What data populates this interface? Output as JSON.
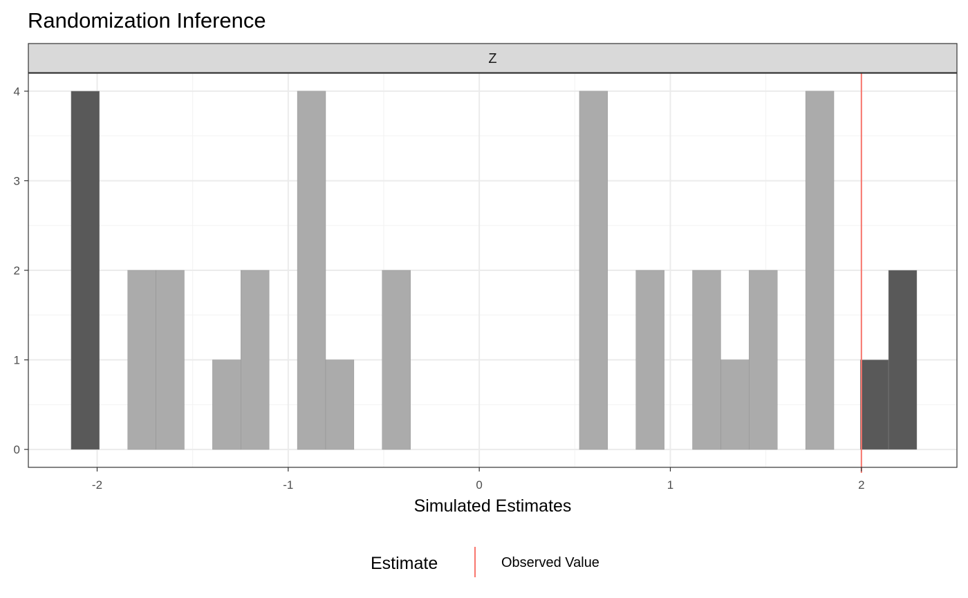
{
  "chart_data": {
    "type": "bar",
    "title": "Randomization Inference",
    "facet_label": "Z",
    "xlabel": "Simulated Estimates",
    "ylabel": "",
    "xlim": [
      -2.36,
      2.5
    ],
    "ylim": [
      -0.2,
      4.2
    ],
    "x_ticks": [
      -2,
      -1,
      0,
      1,
      2
    ],
    "x_tick_labels": [
      "-2",
      "-1",
      "0",
      "1",
      "2"
    ],
    "y_ticks": [
      0,
      1,
      2,
      3,
      4
    ],
    "y_tick_labels": [
      "0",
      "1",
      "2",
      "3",
      "4"
    ],
    "grid": true,
    "bin_width": 0.148,
    "observed_value": 2.0,
    "bins": [
      {
        "x_start": -2.136,
        "x_end": -1.988,
        "count": 4,
        "extreme": true
      },
      {
        "x_start": -1.84,
        "x_end": -1.692,
        "count": 2,
        "extreme": false
      },
      {
        "x_start": -1.692,
        "x_end": -1.544,
        "count": 2,
        "extreme": false
      },
      {
        "x_start": -1.396,
        "x_end": -1.248,
        "count": 1,
        "extreme": false
      },
      {
        "x_start": -1.248,
        "x_end": -1.1,
        "count": 2,
        "extreme": false
      },
      {
        "x_start": -0.952,
        "x_end": -0.804,
        "count": 4,
        "extreme": false
      },
      {
        "x_start": -0.804,
        "x_end": -0.656,
        "count": 1,
        "extreme": false
      },
      {
        "x_start": -0.508,
        "x_end": -0.36,
        "count": 2,
        "extreme": false
      },
      {
        "x_start": 0.524,
        "x_end": 0.672,
        "count": 4,
        "extreme": false
      },
      {
        "x_start": 0.82,
        "x_end": 0.968,
        "count": 2,
        "extreme": false
      },
      {
        "x_start": 1.116,
        "x_end": 1.264,
        "count": 2,
        "extreme": false
      },
      {
        "x_start": 1.264,
        "x_end": 1.412,
        "count": 1,
        "extreme": false
      },
      {
        "x_start": 1.412,
        "x_end": 1.56,
        "count": 2,
        "extreme": false
      },
      {
        "x_start": 1.708,
        "x_end": 1.856,
        "count": 4,
        "extreme": false
      },
      {
        "x_start": 1.994,
        "x_end": 2.142,
        "count": 1,
        "extreme": true
      },
      {
        "x_start": 2.142,
        "x_end": 2.29,
        "count": 2,
        "extreme": true
      }
    ],
    "legend": {
      "title": "Estimate",
      "label": "Observed Value",
      "placement": "bottom"
    },
    "colors": {
      "bar_normal": "#ababab",
      "bar_extreme": "#595959",
      "observed_line": "#f8766d",
      "strip_fill": "#d9d9d9",
      "grid_major": "#ebebeb",
      "grid_minor": "#f2f2f2",
      "panel_border": "#333333"
    }
  }
}
